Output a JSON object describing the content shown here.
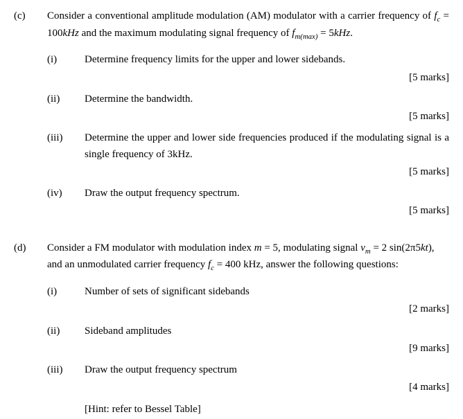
{
  "c": {
    "label": "(c)",
    "intro_a": "Consider a conventional amplitude modulation (AM) modulator with a carrier frequency of ",
    "intro_fc": "f",
    "intro_fc_sub": "c",
    "intro_b": " = 100",
    "intro_khz1": "kHz",
    "intro_c": " and the maximum modulating signal frequency of ",
    "intro_fm": "f",
    "intro_fm_sub": "m(max)",
    "intro_d": " = 5",
    "intro_khz2": "kHz",
    "intro_e": ".",
    "i": {
      "label": "(i)",
      "text": "Determine frequency limits for the upper and lower sidebands.",
      "marks": "[5 marks]"
    },
    "ii": {
      "label": "(ii)",
      "text": "Determine the bandwidth.",
      "marks": "[5 marks]"
    },
    "iii": {
      "label": "(iii)",
      "text": "Determine the upper and lower side frequencies produced if the modulating signal is a single frequency of 3kHz.",
      "marks": "[5 marks]"
    },
    "iv": {
      "label": "(iv)",
      "text": "Draw the output frequency spectrum.",
      "marks": "[5 marks]"
    }
  },
  "d": {
    "label": "(d)",
    "intro_a": "Consider a FM modulator with modulation index ",
    "intro_m": "m",
    "intro_b": " = 5, modulating signal ",
    "intro_vm": "v",
    "intro_vm_sub": "m",
    "intro_c": " = 2 sin(2π5",
    "intro_kt": "kt",
    "intro_d": "), and an unmodulated carrier frequency ",
    "intro_fc": "f",
    "intro_fc_sub": "c",
    "intro_e": " = 400 kHz, answer the following questions:",
    "i": {
      "label": "(i)",
      "text": "Number of sets of significant sidebands",
      "marks": "[2 marks]"
    },
    "ii": {
      "label": "(ii)",
      "text": "Sideband amplitudes",
      "marks": "[9 marks]"
    },
    "iii": {
      "label": "(iii)",
      "text": "Draw the output frequency spectrum",
      "marks": "[4 marks]"
    },
    "hint": "[Hint: refer to Bessel Table]"
  }
}
